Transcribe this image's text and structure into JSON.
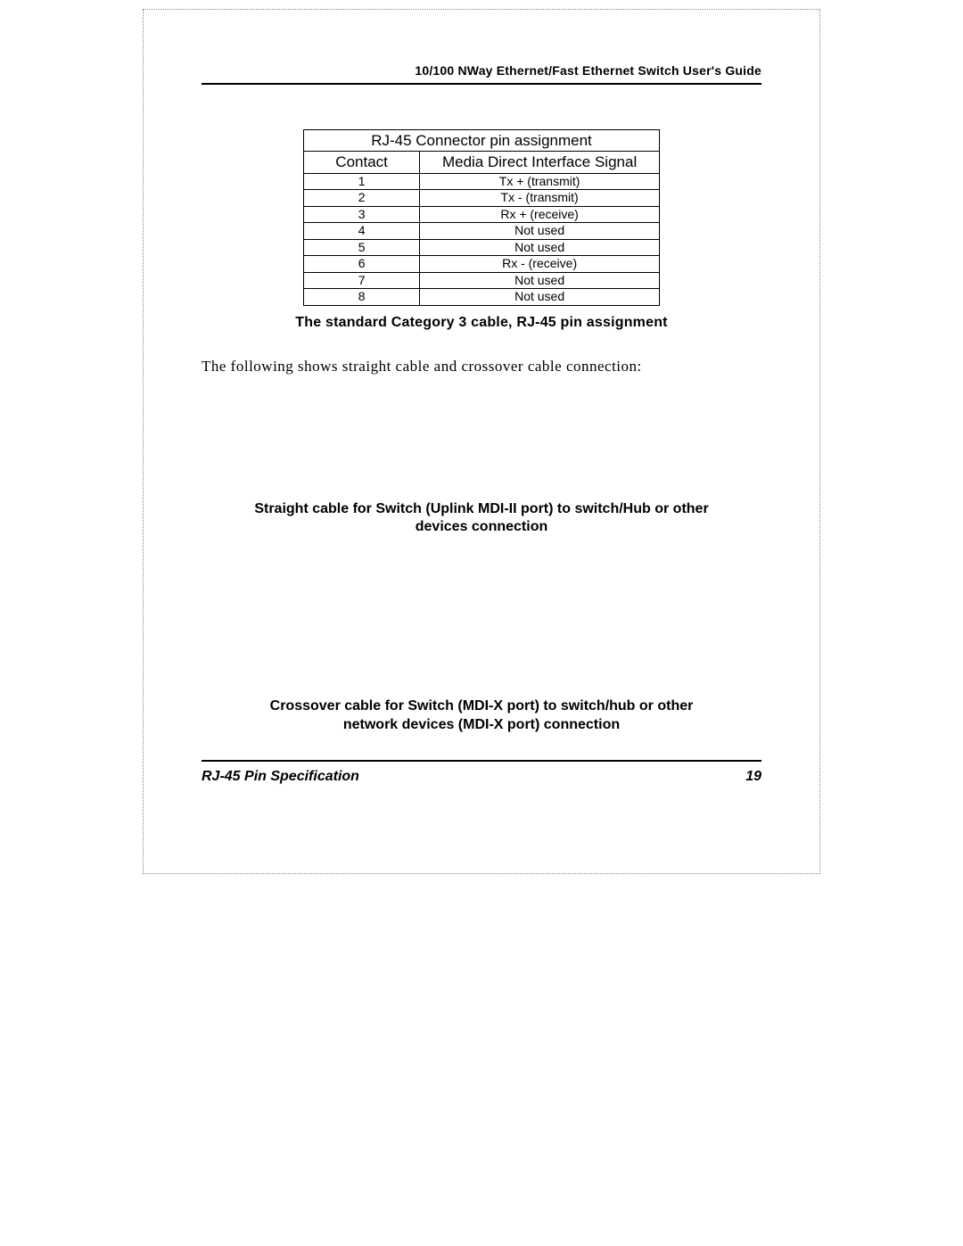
{
  "header": {
    "title": "10/100 NWay Ethernet/Fast Ethernet Switch User's Guide"
  },
  "table": {
    "title": "RJ-45 Connector pin assignment",
    "col_contact": "Contact",
    "col_signal": "Media Direct Interface Signal",
    "rows": [
      {
        "c": "1",
        "s": "Tx + (transmit)"
      },
      {
        "c": "2",
        "s": "Tx - (transmit)"
      },
      {
        "c": "3",
        "s": "Rx + (receive)"
      },
      {
        "c": "4",
        "s": "Not used"
      },
      {
        "c": "5",
        "s": "Not used"
      },
      {
        "c": "6",
        "s": "Rx - (receive)"
      },
      {
        "c": "7",
        "s": "Not used"
      },
      {
        "c": "8",
        "s": "Not used"
      }
    ]
  },
  "captions": {
    "table_caption": "The standard Category 3 cable, RJ-45 pin assignment",
    "body": "The following shows straight cable and crossover cable connection:",
    "straight": "Straight cable for Switch (Uplink MDI-II port) to switch/Hub or other devices connection",
    "crossover": "Crossover cable for Switch (MDI-X port) to switch/hub or other network devices (MDI-X port) connection"
  },
  "footer": {
    "section": "RJ-45 Pin Specification",
    "page": "19"
  }
}
